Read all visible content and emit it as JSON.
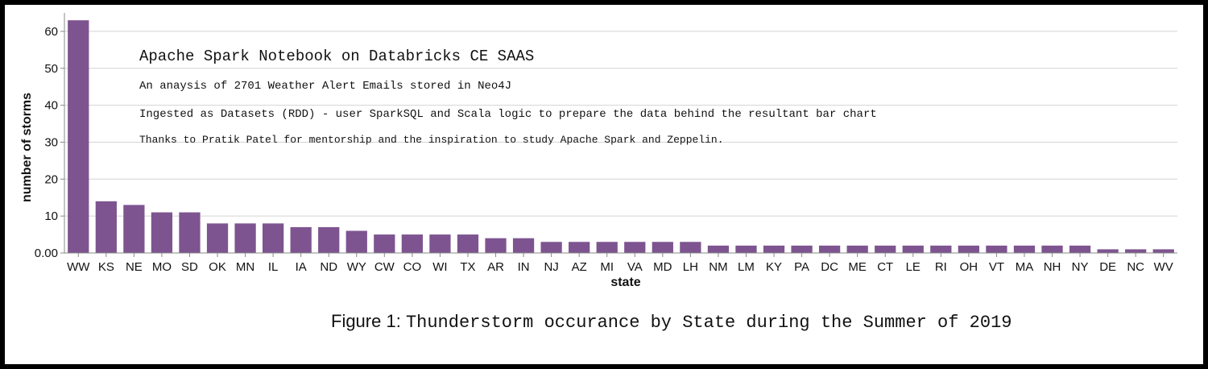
{
  "chart_data": {
    "type": "bar",
    "xlabel": "state",
    "ylabel": "number of storms",
    "ylim": [
      0,
      65
    ],
    "y_ticks": [
      "0.00",
      "10",
      "20",
      "30",
      "40",
      "50",
      "60"
    ],
    "grid": true,
    "bar_color": "#7d5490",
    "categories": [
      "WW",
      "KS",
      "NE",
      "MO",
      "SD",
      "OK",
      "MN",
      "IL",
      "IA",
      "ND",
      "WY",
      "CW",
      "CO",
      "WI",
      "TX",
      "AR",
      "IN",
      "NJ",
      "AZ",
      "MI",
      "VA",
      "MD",
      "LH",
      "NM",
      "LM",
      "KY",
      "PA",
      "DC",
      "ME",
      "CT",
      "LE",
      "RI",
      "OH",
      "VT",
      "MA",
      "NH",
      "NY",
      "DE",
      "NC",
      "WV"
    ],
    "values": [
      63,
      14,
      13,
      11,
      11,
      8,
      8,
      8,
      7,
      7,
      6,
      5,
      5,
      5,
      5,
      4,
      4,
      3,
      3,
      3,
      3,
      3,
      3,
      2,
      2,
      2,
      2,
      2,
      2,
      2,
      2,
      2,
      2,
      2,
      2,
      2,
      2,
      1,
      1,
      1
    ]
  },
  "annotations": {
    "title": "Apache Spark Notebook on Databricks CE SAAS",
    "line1": "An anaysis of 2701 Weather Alert Emails stored in Neo4J",
    "line2": "Ingested as Datasets (RDD) - user SparkSQL and Scala logic to prepare the data behind the resultant bar chart",
    "line3": "Thanks to Pratik Patel for mentorship and the inspiration to study Apache Spark and Zeppelin."
  },
  "caption": {
    "prefix": "Figure 1:",
    "text": "Thunderstorm occurance by State during the Summer of 2019"
  }
}
